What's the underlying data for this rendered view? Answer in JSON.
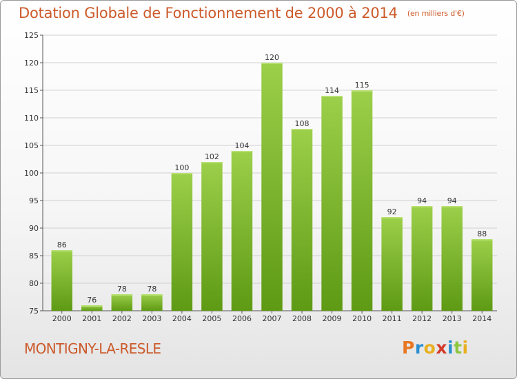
{
  "header": {
    "title": "Dotation Globale de Fonctionnement de 2000 à 2014",
    "unit": "(en milliers d'€)"
  },
  "footer": {
    "commune": "MONTIGNY-LA-RESLE",
    "logo_letters": [
      "P",
      "r",
      "o",
      "x",
      "i",
      "t",
      "i"
    ],
    "logo_colors": [
      "#e87722",
      "#2a8fd0",
      "#e8b020",
      "#d43a2a",
      "#2a8fd0",
      "#8cc63f",
      "#e8b020"
    ]
  },
  "chart_data": {
    "type": "bar",
    "title": "Dotation Globale de Fonctionnement de 2000 à 2014",
    "subtitle": "(en milliers d'€)",
    "categories": [
      "2000",
      "2001",
      "2002",
      "2003",
      "2004",
      "2005",
      "2006",
      "2007",
      "2008",
      "2009",
      "2010",
      "2011",
      "2012",
      "2013",
      "2014"
    ],
    "values": [
      86,
      76,
      78,
      78,
      100,
      102,
      104,
      120,
      108,
      114,
      115,
      92,
      94,
      94,
      88
    ],
    "ylim": [
      75,
      125
    ],
    "yticks": [
      75,
      80,
      85,
      90,
      95,
      100,
      105,
      110,
      115,
      120,
      125
    ],
    "grid": true,
    "bar_color_top": "#9ccf4a",
    "bar_color_bottom": "#5e9a14"
  }
}
